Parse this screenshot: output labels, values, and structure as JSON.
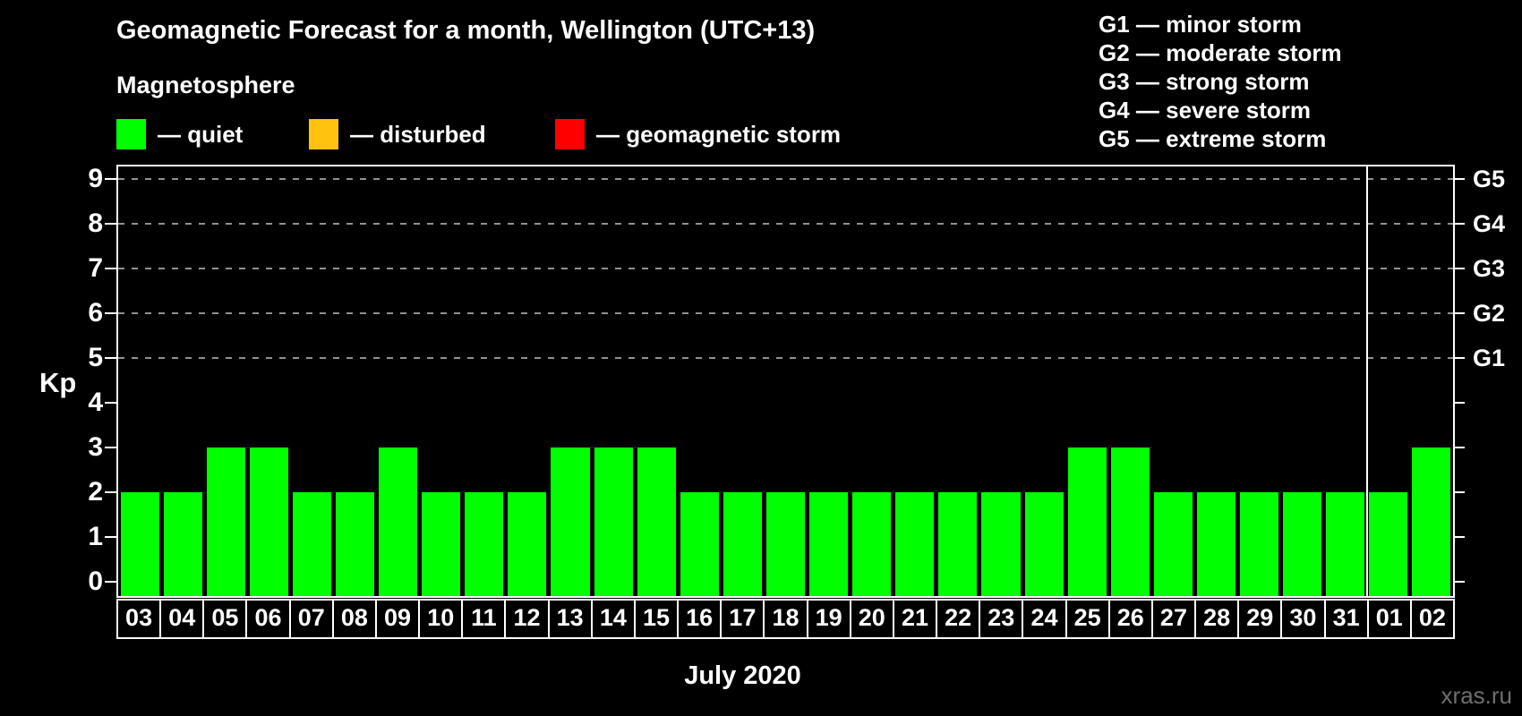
{
  "title": "Geomagnetic Forecast for a month, Wellington (UTC+13)",
  "subtitle": "Magnetosphere",
  "legend": {
    "items": [
      {
        "name": "quiet",
        "label": "— quiet",
        "color": "#00ff00"
      },
      {
        "name": "disturbed",
        "label": "— disturbed",
        "color": "#ffc20e"
      },
      {
        "name": "geomagnetic-storm",
        "label": "— geomagnetic storm",
        "color": "#ff0000"
      }
    ]
  },
  "storm_scale_legend": {
    "lines": [
      "G1 — minor storm",
      "G2 — moderate storm",
      "G3 — strong storm",
      "G4 — severe storm",
      "G5 — extreme storm"
    ]
  },
  "watermark": "xras.ru",
  "chart_data": {
    "type": "bar",
    "title": "Geomagnetic Forecast for a month, Wellington (UTC+13)",
    "categories": [
      "03",
      "04",
      "05",
      "06",
      "07",
      "08",
      "09",
      "10",
      "11",
      "12",
      "13",
      "14",
      "15",
      "16",
      "17",
      "18",
      "19",
      "20",
      "21",
      "22",
      "23",
      "24",
      "25",
      "26",
      "27",
      "28",
      "29",
      "30",
      "31",
      "01",
      "02"
    ],
    "values": [
      2,
      2,
      3,
      3,
      2,
      2,
      3,
      2,
      2,
      2,
      3,
      3,
      3,
      2,
      2,
      2,
      2,
      2,
      2,
      2,
      2,
      2,
      3,
      3,
      2,
      2,
      2,
      2,
      2,
      2,
      3
    ],
    "bar_color": "#00ff00",
    "xlabel": "July 2020",
    "ylabel": "Kp",
    "ylim": [
      0,
      9
    ],
    "yticks": [
      0,
      1,
      2,
      3,
      4,
      5,
      6,
      7,
      8,
      9
    ],
    "gridlines_at": [
      5,
      6,
      7,
      8,
      9
    ],
    "grid_style": "dashed",
    "right_axis_labels": [
      {
        "kp": 5,
        "label": "G1"
      },
      {
        "kp": 6,
        "label": "G2"
      },
      {
        "kp": 7,
        "label": "G3"
      },
      {
        "kp": 8,
        "label": "G4"
      },
      {
        "kp": 9,
        "label": "G5"
      }
    ],
    "month_separator_after_index": 28,
    "legend_position": "top",
    "background": "#000000"
  }
}
